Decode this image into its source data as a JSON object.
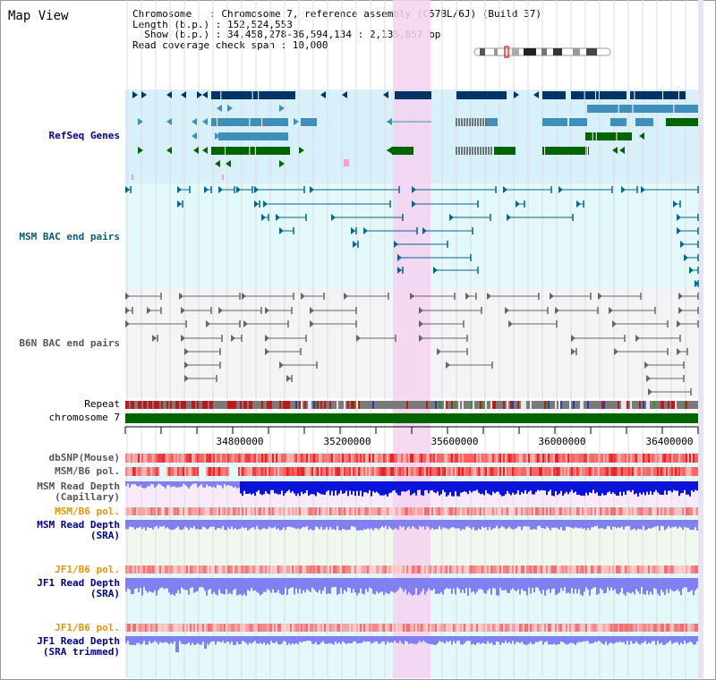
{
  "title": "Map View",
  "info": {
    "chromosome_key": "Chromosome",
    "chromosome_val": ": Chromosome 7, reference assembly (C57BL/6J) (Build 37)",
    "length_key": "Length (b.p.)",
    "length_val": ": 152,524,553",
    "show_key": "Show (b.p.)",
    "show_val": ": 34,458,278-36,594,134 : 2,135,857 bp",
    "coverage": "Read coverage check span : 10,000"
  },
  "tracks": {
    "refseq": "RefSeq Genes",
    "msm_bac": "MSM BAC end pairs",
    "b6n_bac": "B6N BAC end pairs",
    "repeat": "Repeat",
    "chromosome": "chromosome 7",
    "dbsnp": "dbSNP(Mouse)",
    "msm_pol": "MSM/B6 pol.",
    "msm_depth_cap_1": "MSM Read Depth",
    "msm_depth_cap_2": "(Capillary)",
    "msm_pol2": "MSM/B6 pol.",
    "msm_depth_sra_1": "MSM Read Depth",
    "msm_depth_sra_2": "(SRA)",
    "jf1_pol": "JF1/B6 pol.",
    "jf1_depth_sra_1": "JF1 Read Depth",
    "jf1_depth_sra_2": "(SRA)",
    "jf1_pol2": "JF1/B6 pol.",
    "jf1_depth_trim_1": "JF1 Read Depth",
    "jf1_depth_trim_2": "(SRA trimmed)"
  },
  "axis": {
    "ticks": [
      "34800000",
      "35200000",
      "35600000",
      "36000000",
      "36400000"
    ]
  },
  "colors": {
    "refseq_bg": "#d8f0fa",
    "msm_bg": "#e2f8fa",
    "b6n_bg": "#f4f4f7",
    "highlight": "#f5d2f0",
    "gene_dark": "#003366",
    "gene_mid": "#3f8fb8",
    "gene_green": "#006400",
    "bac_teal": "#0b6688",
    "bac_gray": "#666666",
    "depth_blue": "#0a14d8",
    "depth_light": "#8080f0",
    "chrom_green": "#006400"
  }
}
